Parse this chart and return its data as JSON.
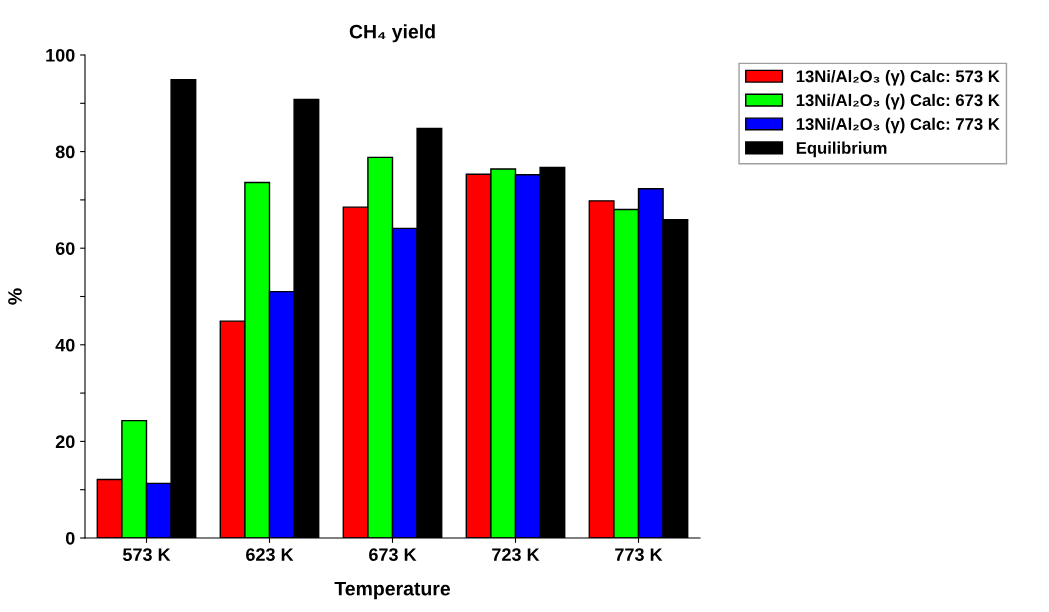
{
  "chart_data": {
    "type": "bar",
    "title": "CH₄ yield",
    "xlabel": "Temperature",
    "ylabel": "%",
    "categories": [
      "573 K",
      "623 K",
      "673 K",
      "723 K",
      "773 K"
    ],
    "series": [
      {
        "name": "13Ni/Al₂O₃ (γ) Calc: 573 K",
        "color": "#ff0000",
        "values": [
          12.1,
          44.9,
          68.5,
          75.3,
          69.8
        ]
      },
      {
        "name": "13Ni/Al₂O₃ (γ) Calc: 673 K",
        "color": "#00ff00",
        "values": [
          24.3,
          73.6,
          78.8,
          76.4,
          68.0
        ]
      },
      {
        "name": "13Ni/Al₂O₃ (γ) Calc: 773 K",
        "color": "#0000ff",
        "values": [
          11.3,
          51.0,
          64.1,
          75.2,
          72.3
        ]
      },
      {
        "name": "Equilibrium",
        "color": "#000000",
        "values": [
          94.9,
          90.8,
          84.8,
          76.7,
          65.9
        ]
      }
    ],
    "ylim": [
      0,
      100
    ],
    "yticks": [
      0,
      {
        "value": 10,
        "label": null
      },
      20,
      {
        "value": 30,
        "label": null
      },
      40,
      {
        "value": 50,
        "label": null
      },
      60,
      {
        "value": 70,
        "label": null
      },
      80,
      {
        "value": 90,
        "label": null
      },
      100
    ],
    "grid": false,
    "legend": "top right"
  }
}
